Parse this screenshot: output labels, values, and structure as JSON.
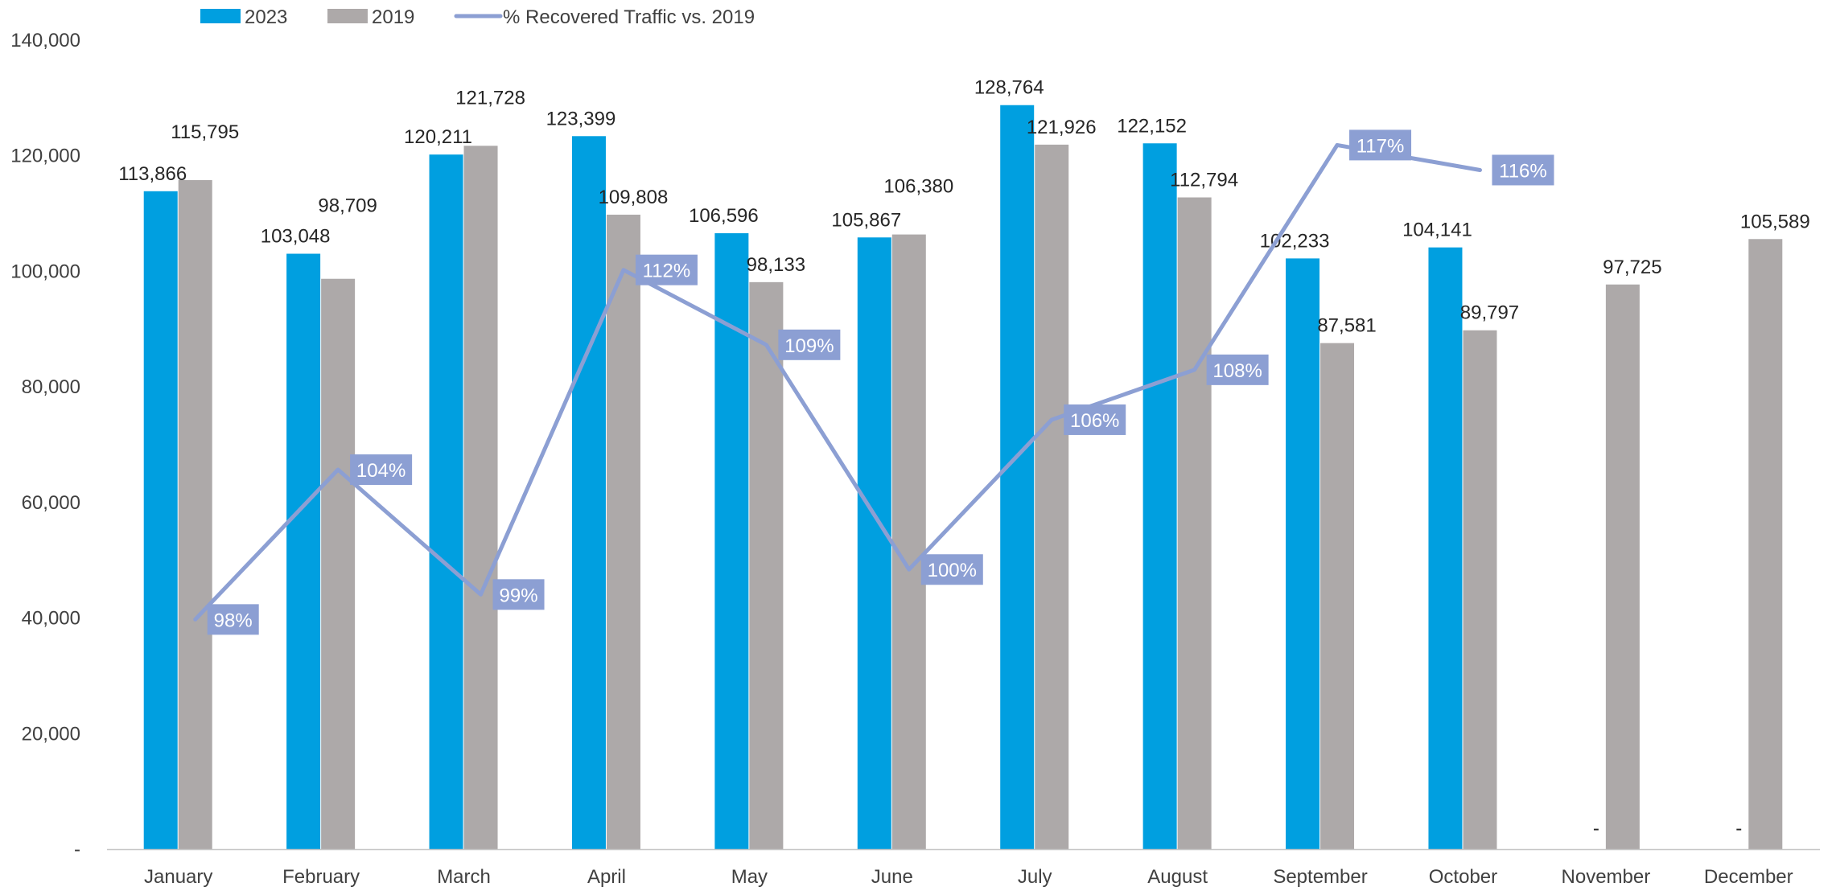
{
  "chart_data": {
    "type": "bar",
    "title": "",
    "xlabel": "",
    "ylabel": "",
    "categories": [
      "January",
      "February",
      "March",
      "April",
      "May",
      "June",
      "July",
      "August",
      "September",
      "October",
      "November",
      "December"
    ],
    "series": [
      {
        "name": "2023",
        "type": "bar",
        "color": "#009FE0",
        "values": [
          113866,
          103048,
          120211,
          123399,
          106596,
          105867,
          128764,
          122152,
          102233,
          104141,
          null,
          null
        ],
        "labels": [
          "113,866",
          "103,048",
          "120,211",
          "123,399",
          "106,596",
          "105,867",
          "128,764",
          "122,152",
          "102,233",
          "104,141",
          "-",
          "-"
        ]
      },
      {
        "name": "2019",
        "type": "bar",
        "color": "#ADA9A9",
        "values": [
          115795,
          98709,
          121728,
          109808,
          98133,
          106380,
          121926,
          112794,
          87581,
          89797,
          97725,
          105589
        ],
        "labels": [
          "115,795",
          "98,709",
          "121,728",
          "109,808",
          "98,133",
          "106,380",
          "121,926",
          "112,794",
          "87,581",
          "89,797",
          "97,725",
          "105,589"
        ]
      },
      {
        "name": "% Recovered Traffic vs. 2019",
        "type": "line",
        "axis": "secondary",
        "color": "#8C9FD3",
        "values": [
          98,
          104,
          99,
          112,
          109,
          100,
          106,
          108,
          117,
          116,
          null,
          null
        ],
        "labels": [
          "98%",
          "104%",
          "99%",
          "112%",
          "109%",
          "100%",
          "106%",
          "108%",
          "117%",
          "116%",
          "",
          ""
        ]
      }
    ],
    "y_axis": {
      "min": 0,
      "max": 140000,
      "ticks": [
        0,
        20000,
        40000,
        60000,
        80000,
        100000,
        120000,
        140000
      ],
      "tick_labels": [
        "-",
        "20,000",
        "40,000",
        "60,000",
        "80,000",
        "100,000",
        "120,000",
        "140,000"
      ]
    },
    "secondary_axis": {
      "min": 88.8,
      "max": 121.2,
      "visible": false
    },
    "grid": false,
    "legend_position": "top-left"
  }
}
